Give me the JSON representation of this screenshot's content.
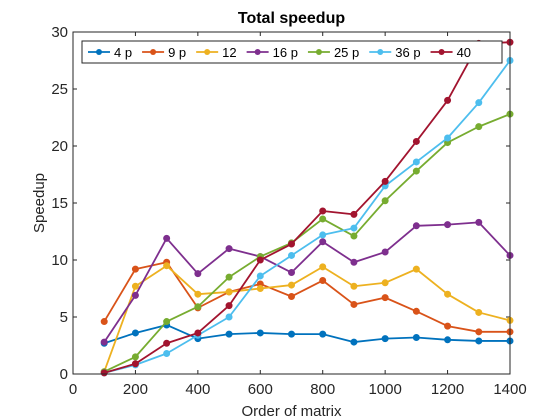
{
  "chart_data": {
    "type": "line",
    "title": "Total speedup",
    "xlabel": "Order of matrix",
    "ylabel": "Speedup",
    "xlim": [
      0,
      1400
    ],
    "ylim": [
      0,
      30
    ],
    "xticks": [
      0,
      200,
      400,
      600,
      800,
      1000,
      1200,
      1400
    ],
    "yticks": [
      0,
      5,
      10,
      15,
      20,
      25,
      30
    ],
    "grid": false,
    "legend_position": "top",
    "x": [
      100,
      200,
      300,
      400,
      500,
      600,
      700,
      800,
      900,
      1000,
      1100,
      1200,
      1300,
      1400
    ],
    "series": [
      {
        "name": "4 p",
        "color": "#0072BD",
        "values": [
          2.7,
          3.6,
          4.3,
          3.1,
          3.5,
          3.6,
          3.5,
          3.5,
          2.8,
          3.1,
          3.2,
          3.0,
          2.9,
          2.9
        ]
      },
      {
        "name": "9 p",
        "color": "#D95319",
        "values": [
          4.6,
          9.2,
          9.8,
          5.8,
          7.2,
          7.9,
          6.8,
          8.2,
          6.1,
          6.7,
          5.5,
          4.2,
          3.7,
          3.7
        ]
      },
      {
        "name": "12",
        "color": "#EDB120",
        "values": [
          0.2,
          7.7,
          9.5,
          7.0,
          7.2,
          7.5,
          7.8,
          9.4,
          7.7,
          8.0,
          9.2,
          7.0,
          5.4,
          4.7
        ]
      },
      {
        "name": "16 p",
        "color": "#7E2F8E",
        "values": [
          2.8,
          6.9,
          11.9,
          8.8,
          11.0,
          10.3,
          8.9,
          11.6,
          9.8,
          10.7,
          13.0,
          13.1,
          13.3,
          10.4
        ]
      },
      {
        "name": "25 p",
        "color": "#77AC30",
        "values": [
          0.2,
          1.5,
          4.6,
          5.9,
          8.5,
          10.3,
          11.5,
          13.6,
          12.1,
          15.2,
          17.8,
          20.3,
          21.7,
          22.8
        ]
      },
      {
        "name": "36 p",
        "color": "#4DBEEE",
        "values": [
          0.1,
          0.8,
          1.8,
          3.4,
          5.0,
          8.6,
          10.4,
          12.2,
          12.8,
          16.5,
          18.6,
          20.7,
          23.8,
          27.5
        ]
      },
      {
        "name": "40",
        "color": "#A2142F",
        "values": [
          0.1,
          0.9,
          2.7,
          3.6,
          6.0,
          10.0,
          11.4,
          14.3,
          14.0,
          16.9,
          20.4,
          24.0,
          29.0,
          29.1
        ]
      }
    ]
  }
}
